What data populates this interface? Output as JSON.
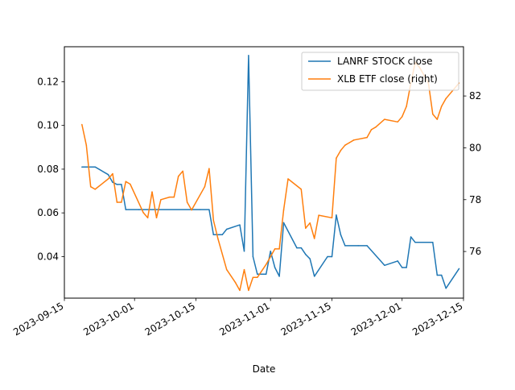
{
  "chart_data": {
    "type": "line",
    "title": "",
    "xlabel": "Date",
    "ylabel_left": "",
    "ylabel_right": "",
    "x_ticks": [
      "2023-09-15",
      "2023-10-01",
      "2023-10-15",
      "2023-11-01",
      "2023-11-15",
      "2023-12-01",
      "2023-12-15"
    ],
    "xlim": [
      "2023-09-15",
      "2023-12-15"
    ],
    "ylim_left": [
      0.021,
      0.136
    ],
    "yticks_left": [
      "0.04",
      "0.06",
      "0.08",
      "0.10",
      "0.12"
    ],
    "ylim_right": [
      74.2,
      83.9
    ],
    "yticks_right": [
      "76",
      "78",
      "80",
      "82"
    ],
    "grid": false,
    "legend_position": "upper right",
    "series": [
      {
        "name": "LANRF STOCK close",
        "axis": "left",
        "color": "#1f77b4",
        "points": [
          [
            "2023-09-19",
            0.081
          ],
          [
            "2023-09-22",
            0.081
          ],
          [
            "2023-09-25",
            0.0775
          ],
          [
            "2023-09-26",
            0.074
          ],
          [
            "2023-09-27",
            0.073
          ],
          [
            "2023-09-28",
            0.073
          ],
          [
            "2023-09-29",
            0.0615
          ],
          [
            "2023-10-02",
            0.0615
          ],
          [
            "2023-10-16",
            0.0615
          ],
          [
            "2023-10-18",
            0.0615
          ],
          [
            "2023-10-19",
            0.05
          ],
          [
            "2023-10-20",
            0.05
          ],
          [
            "2023-10-21",
            0.05
          ],
          [
            "2023-10-22",
            0.0525
          ],
          [
            "2023-10-25",
            0.0545
          ],
          [
            "2023-10-26",
            0.0425
          ],
          [
            "2023-10-27",
            0.132
          ],
          [
            "2023-10-28",
            0.04
          ],
          [
            "2023-10-29",
            0.032
          ],
          [
            "2023-10-30",
            0.032
          ],
          [
            "2023-10-31",
            0.032
          ],
          [
            "2023-11-01",
            0.0425
          ],
          [
            "2023-11-02",
            0.035
          ],
          [
            "2023-11-03",
            0.031
          ],
          [
            "2023-11-04",
            0.0555
          ],
          [
            "2023-11-07",
            0.044
          ],
          [
            "2023-11-08",
            0.044
          ],
          [
            "2023-11-09",
            0.041
          ],
          [
            "2023-11-10",
            0.039
          ],
          [
            "2023-11-11",
            0.031
          ],
          [
            "2023-11-14",
            0.04
          ],
          [
            "2023-11-15",
            0.04
          ],
          [
            "2023-11-16",
            0.059
          ],
          [
            "2023-11-17",
            0.05
          ],
          [
            "2023-11-18",
            0.045
          ],
          [
            "2023-11-21",
            0.045
          ],
          [
            "2023-11-23",
            0.045
          ],
          [
            "2023-11-27",
            0.036
          ],
          [
            "2023-11-30",
            0.038
          ],
          [
            "2023-12-01",
            0.035
          ],
          [
            "2023-12-02",
            0.035
          ],
          [
            "2023-12-03",
            0.049
          ],
          [
            "2023-12-04",
            0.0465
          ],
          [
            "2023-12-08",
            0.0465
          ],
          [
            "2023-12-09",
            0.0315
          ],
          [
            "2023-12-10",
            0.0315
          ],
          [
            "2023-12-11",
            0.0255
          ],
          [
            "2023-12-14",
            0.0345
          ]
        ]
      },
      {
        "name": "XLB ETF close (right)",
        "axis": "right",
        "color": "#ff7f0e",
        "points": [
          [
            "2023-09-19",
            80.9
          ],
          [
            "2023-09-20",
            80.1
          ],
          [
            "2023-09-21",
            78.5
          ],
          [
            "2023-09-22",
            78.4
          ],
          [
            "2023-09-25",
            78.8
          ],
          [
            "2023-09-26",
            79.0
          ],
          [
            "2023-09-27",
            77.9
          ],
          [
            "2023-09-28",
            77.9
          ],
          [
            "2023-09-29",
            78.7
          ],
          [
            "2023-09-30",
            78.6
          ],
          [
            "2023-10-03",
            77.5
          ],
          [
            "2023-10-04",
            77.3
          ],
          [
            "2023-10-05",
            78.3
          ],
          [
            "2023-10-06",
            77.3
          ],
          [
            "2023-10-07",
            78.0
          ],
          [
            "2023-10-09",
            78.1
          ],
          [
            "2023-10-10",
            78.1
          ],
          [
            "2023-10-11",
            78.9
          ],
          [
            "2023-10-12",
            79.1
          ],
          [
            "2023-10-13",
            77.9
          ],
          [
            "2023-10-14",
            77.6
          ],
          [
            "2023-10-17",
            78.5
          ],
          [
            "2023-10-18",
            79.2
          ],
          [
            "2023-10-19",
            77.2
          ],
          [
            "2023-10-20",
            76.5
          ],
          [
            "2023-10-22",
            75.3
          ],
          [
            "2023-10-24",
            74.8
          ],
          [
            "2023-10-25",
            74.5
          ],
          [
            "2023-10-26",
            75.3
          ],
          [
            "2023-10-27",
            74.5
          ],
          [
            "2023-10-28",
            75.0
          ],
          [
            "2023-10-29",
            75.0
          ],
          [
            "2023-10-31",
            75.5
          ],
          [
            "2023-11-02",
            76.1
          ],
          [
            "2023-11-03",
            76.1
          ],
          [
            "2023-11-04",
            77.6
          ],
          [
            "2023-11-05",
            78.8
          ],
          [
            "2023-11-08",
            78.4
          ],
          [
            "2023-11-09",
            76.9
          ],
          [
            "2023-11-10",
            77.1
          ],
          [
            "2023-11-11",
            76.5
          ],
          [
            "2023-11-12",
            77.4
          ],
          [
            "2023-11-15",
            77.3
          ],
          [
            "2023-11-16",
            79.6
          ],
          [
            "2023-11-17",
            79.9
          ],
          [
            "2023-11-18",
            80.1
          ],
          [
            "2023-11-19",
            80.2
          ],
          [
            "2023-11-20",
            80.3
          ],
          [
            "2023-11-23",
            80.4
          ],
          [
            "2023-11-24",
            80.7
          ],
          [
            "2023-11-25",
            80.8
          ],
          [
            "2023-11-27",
            81.1
          ],
          [
            "2023-11-30",
            81.0
          ],
          [
            "2023-12-01",
            81.2
          ],
          [
            "2023-12-02",
            81.6
          ],
          [
            "2023-12-03",
            82.5
          ],
          [
            "2023-12-04",
            83.3
          ],
          [
            "2023-12-05",
            83.1
          ],
          [
            "2023-12-06",
            82.8
          ],
          [
            "2023-12-07",
            82.5
          ],
          [
            "2023-12-08",
            81.3
          ],
          [
            "2023-12-09",
            81.1
          ],
          [
            "2023-12-10",
            81.6
          ],
          [
            "2023-12-11",
            81.9
          ],
          [
            "2023-12-14",
            82.5
          ]
        ]
      }
    ]
  }
}
